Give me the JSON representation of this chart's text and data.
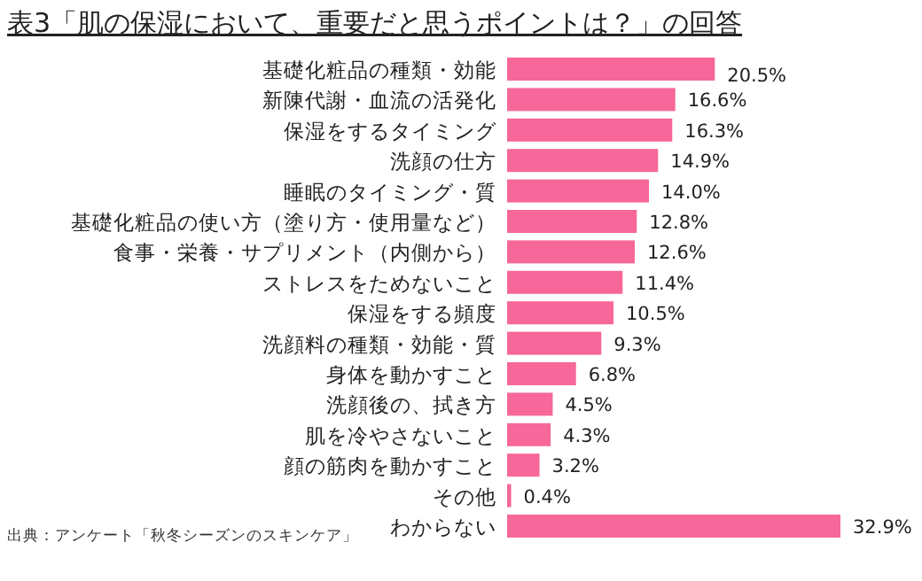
{
  "chart_data": {
    "type": "bar",
    "orientation": "horizontal",
    "title": "表3「肌の保湿において、重要だと思うポイントは？」の回答",
    "categories": [
      "基礎化粧品の種類・効能",
      "新陳代謝・血流の活発化",
      "保湿をするタイミング",
      "洗顔の仕方",
      "睡眠のタイミング・質",
      "基礎化粧品の使い方（塗り方・使用量など）",
      "食事・栄養・サプリメント（内側から）",
      "ストレスをためないこと",
      "保湿をする頻度",
      "洗顔料の種類・効能・質",
      "身体を動かすこと",
      "洗顔後の、拭き方",
      "肌を冷やさないこと",
      "顔の筋肉を動かすこと",
      "その他",
      "わからない"
    ],
    "values": [
      20.5,
      16.6,
      16.3,
      14.9,
      14.0,
      12.8,
      12.6,
      11.4,
      10.5,
      9.3,
      6.8,
      4.5,
      4.3,
      3.2,
      0.4,
      32.9
    ],
    "value_labels": [
      "20.5%",
      "16.6%",
      "16.3%",
      "14.9%",
      "14.0%",
      "12.8%",
      "12.6%",
      "11.4%",
      "10.5%",
      "9.3%",
      "6.8%",
      "4.5%",
      "4.3%",
      "3.2%",
      "0.4%",
      "32.9%"
    ],
    "color": "#f7679a",
    "annotations": [
      "出典：アンケート「秋冬シーズンのスキンケア」"
    ]
  }
}
